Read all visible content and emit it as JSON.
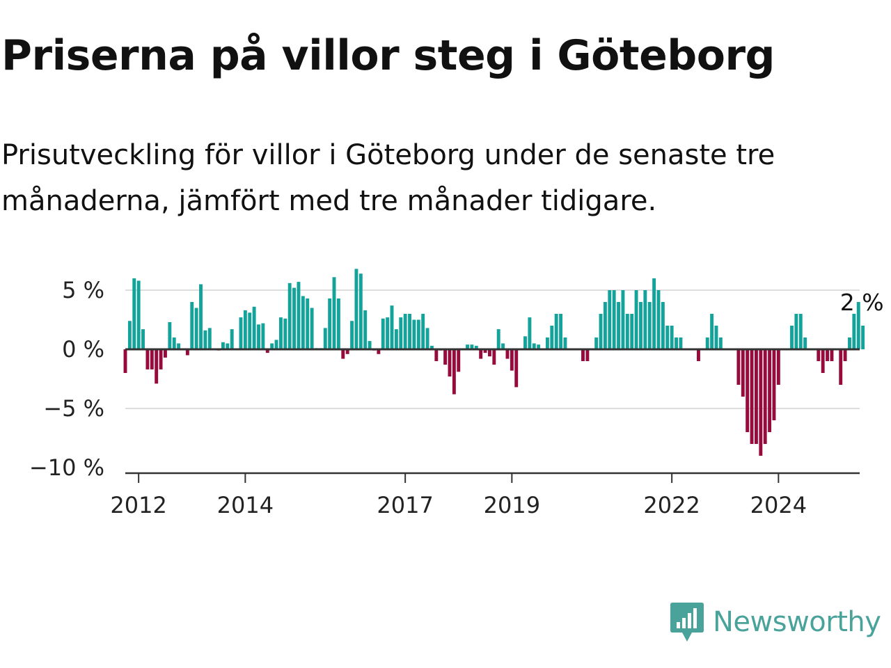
{
  "title": "Priserna på villor steg i Göteborg",
  "subtitle": "Prisutveckling för villor i Göteborg under de senaste tre månaderna, jämfört med tre månader tidigare.",
  "brand": {
    "name": "Newsworthy",
    "color": "#4aa39a",
    "icon": "newsworthy-logo-icon"
  },
  "colors": {
    "positive": "#14a39a",
    "negative": "#970a3c",
    "grid": "#dddddd",
    "axis": "#333333"
  },
  "chart_data": {
    "type": "bar",
    "title": "Priserna på villor steg i Göteborg",
    "xlabel": "",
    "ylabel": "",
    "ylim": [
      -10,
      7
    ],
    "x_start": 2011.75,
    "step_years": 0.0833333,
    "y_ticks": [
      {
        "value": 5,
        "label": "5 %"
      },
      {
        "value": 0,
        "label": "0 %"
      },
      {
        "value": -5,
        "label": "−5 %"
      },
      {
        "value": -10,
        "label": "−10 %"
      }
    ],
    "x_ticks": [
      {
        "value": 2012,
        "label": "2012"
      },
      {
        "value": 2014,
        "label": "2014"
      },
      {
        "value": 2017,
        "label": "2017"
      },
      {
        "value": 2019,
        "label": "2019"
      },
      {
        "value": 2022,
        "label": "2022"
      },
      {
        "value": 2024,
        "label": "2024"
      }
    ],
    "annotation": {
      "text": "2 %",
      "index": -1
    },
    "values": [
      -2,
      2.4,
      6,
      5.8,
      1.7,
      -1.7,
      -1.7,
      -2.9,
      -1.7,
      -0.7,
      2.3,
      1,
      0.5,
      0,
      -0.5,
      4,
      3.5,
      5.5,
      1.6,
      1.8,
      0,
      -0.1,
      0.6,
      0.5,
      1.7,
      0,
      2.7,
      3.3,
      3.1,
      3.6,
      2.1,
      2.2,
      -0.3,
      0.5,
      0.8,
      2.7,
      2.6,
      5.6,
      5.2,
      5.7,
      4.5,
      4.3,
      3.5,
      0.1,
      0.1,
      1.8,
      4.3,
      6.1,
      4.3,
      -0.8,
      -0.4,
      2.4,
      6.8,
      6.4,
      3.3,
      0.7,
      -0.1,
      -0.4,
      2.6,
      2.7,
      3.7,
      1.7,
      2.7,
      3,
      3,
      2.5,
      2.5,
      3,
      1.8,
      0.3,
      -1,
      -0.1,
      -1.3,
      -2.3,
      -3.8,
      -1.9,
      0,
      0.4,
      0.4,
      0.3,
      -0.8,
      -0.3,
      -0.6,
      -1.3,
      1.7,
      0.5,
      -0.8,
      -1.8,
      -3.2,
      0,
      1.1,
      2.7,
      0.5,
      0.4,
      0,
      1,
      2,
      3,
      3,
      1,
      0,
      0,
      0,
      -1,
      -1,
      0,
      1,
      3,
      4,
      5,
      5,
      4,
      5,
      3,
      3,
      5,
      4,
      5,
      4,
      6,
      5,
      4,
      2,
      2,
      1,
      1,
      0,
      0,
      0,
      -1,
      0,
      1,
      3,
      2,
      1,
      0,
      0,
      0,
      -3,
      -4,
      -7,
      -8,
      -8,
      -9,
      -8,
      -7,
      -6,
      -3,
      0,
      0,
      2,
      3,
      3,
      1,
      0,
      0,
      -1,
      -2,
      -1,
      -1,
      0,
      -3,
      -1,
      1,
      3,
      4,
      2
    ]
  }
}
